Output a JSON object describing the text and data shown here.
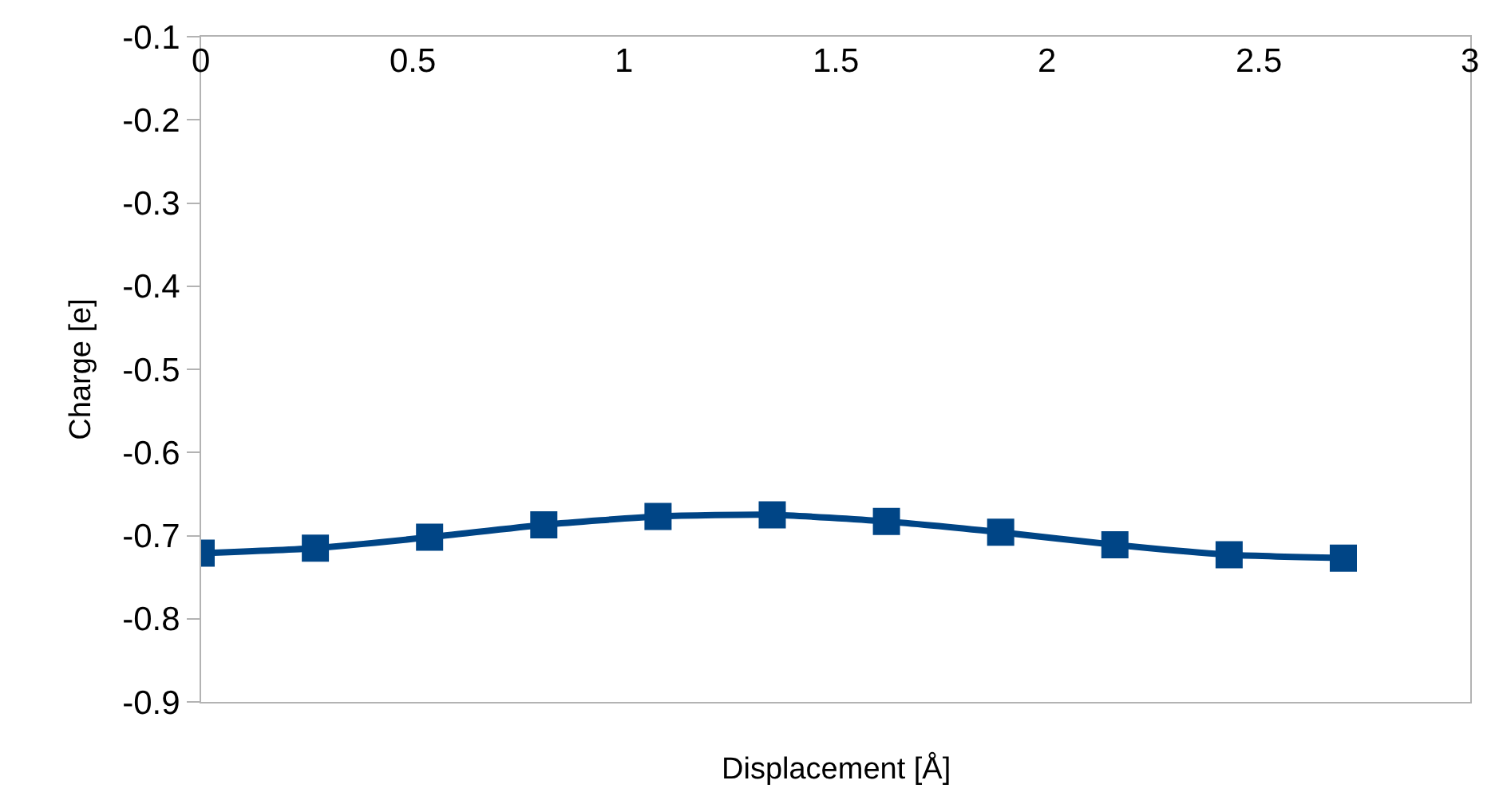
{
  "chart_data": {
    "type": "line",
    "xlabel": "Displacement [Å]",
    "ylabel": "Charge [e]",
    "x": [
      0,
      0.27,
      0.54,
      0.81,
      1.08,
      1.35,
      1.62,
      1.89,
      2.16,
      2.43,
      2.7
    ],
    "series": [
      {
        "color": "#004586",
        "values": [
          -0.721,
          -0.715,
          -0.702,
          -0.687,
          -0.677,
          -0.675,
          -0.683,
          -0.696,
          -0.711,
          -0.723,
          -0.727
        ]
      }
    ],
    "xlim": [
      0,
      3
    ],
    "xticks": [
      0,
      0.5,
      1,
      1.5,
      2,
      2.5,
      3
    ],
    "ylim": [
      -0.9,
      -0.1
    ],
    "yticks": [
      -0.9,
      -0.8,
      -0.7,
      -0.6,
      -0.5,
      -0.4,
      -0.3,
      -0.2,
      -0.1
    ],
    "grid": false,
    "marker": "square",
    "line_style": "solid"
  }
}
